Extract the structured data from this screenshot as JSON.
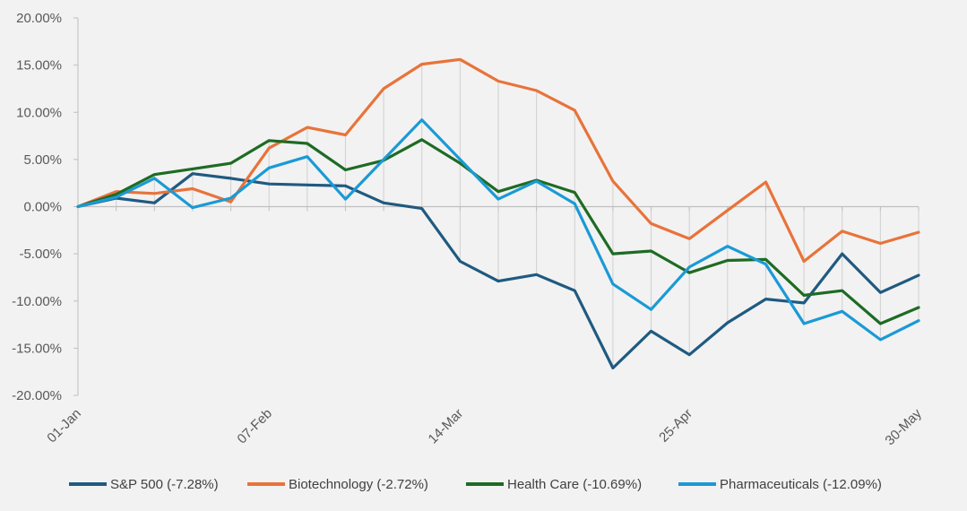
{
  "chart_data": {
    "type": "line",
    "title": "",
    "xlabel": "",
    "ylabel": "",
    "ylim": [
      -20,
      20
    ],
    "y_ticks": [
      "20.00%",
      "15.00%",
      "10.00%",
      "5.00%",
      "0.00%",
      "-5.00%",
      "-10.00%",
      "-15.00%",
      "-20.00%"
    ],
    "x_ticks": [
      "01-Jan",
      "07-Feb",
      "14-Mar",
      "25-Apr",
      "30-May"
    ],
    "x_tick_positions": [
      0,
      5,
      10,
      16,
      22
    ],
    "x": [
      "01-Jan",
      "",
      "",
      "",
      "",
      "07-Feb",
      "",
      "",
      "",
      "",
      "14-Mar",
      "",
      "",
      "",
      "",
      "",
      "25-Apr",
      "",
      "",
      "",
      "",
      "",
      "30-May"
    ],
    "vertical_gridlines": true,
    "legend_position": "bottom",
    "series": [
      {
        "name": "S&P 500 (-7.28%)",
        "color": "#1f5a80",
        "values": [
          0,
          0.9,
          0.4,
          3.5,
          3.0,
          2.4,
          2.3,
          2.2,
          0.4,
          -0.2,
          -5.8,
          -7.9,
          -7.2,
          -8.9,
          -17.1,
          -13.2,
          -15.7,
          -12.3,
          -9.8,
          -10.2,
          -5.0,
          -9.1,
          -7.28
        ]
      },
      {
        "name": "Biotechnology (-2.72%)",
        "color": "#e8733a",
        "values": [
          0,
          1.6,
          1.4,
          1.9,
          0.5,
          6.2,
          8.4,
          7.6,
          12.5,
          15.1,
          15.6,
          13.3,
          12.3,
          10.2,
          2.7,
          -1.8,
          -3.4,
          -0.4,
          2.6,
          -5.8,
          -2.6,
          -3.9,
          -2.72
        ]
      },
      {
        "name": "Health Care (-10.69%)",
        "color": "#1e6b24",
        "values": [
          0,
          1.3,
          3.4,
          4.0,
          4.6,
          7.0,
          6.7,
          3.9,
          4.9,
          7.1,
          4.6,
          1.6,
          2.8,
          1.5,
          -5.0,
          -4.7,
          -7.0,
          -5.7,
          -5.6,
          -9.4,
          -8.9,
          -12.4,
          -10.69
        ]
      },
      {
        "name": "Pharmaceuticals (-12.09%)",
        "color": "#1a9ad6",
        "values": [
          0,
          1.0,
          3.0,
          -0.1,
          0.9,
          4.1,
          5.3,
          0.8,
          5.0,
          9.2,
          5.0,
          0.8,
          2.7,
          0.3,
          -8.2,
          -10.9,
          -6.4,
          -4.2,
          -6.1,
          -12.4,
          -11.1,
          -14.1,
          -12.09
        ]
      }
    ]
  }
}
